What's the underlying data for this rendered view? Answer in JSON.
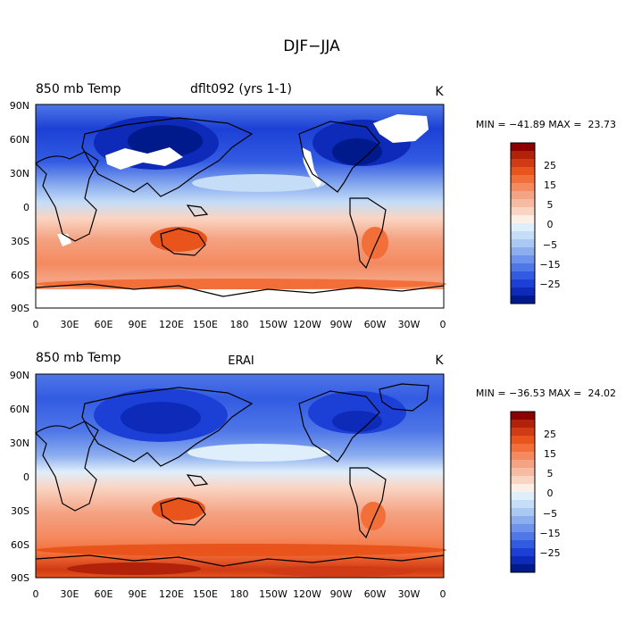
{
  "figure": {
    "title": "DJF−JJA"
  },
  "panels": [
    {
      "left_title": "850 mb Temp",
      "center_title": "dflt092 (yrs 1-1)",
      "units": "K",
      "stats_text": "MIN = −41.89 MAX =  23.73"
    },
    {
      "left_title": "850 mb Temp",
      "center_title": "ERAI",
      "units": "K",
      "stats_text": "MIN = −36.53 MAX =  24.02"
    }
  ],
  "axes": {
    "lat_ticks": [
      "90N",
      "60N",
      "30N",
      "0",
      "30S",
      "60S",
      "90S"
    ],
    "lon_ticks": [
      "0",
      "30E",
      "60E",
      "90E",
      "120E",
      "150E",
      "180",
      "150W",
      "120W",
      "90W",
      "60W",
      "30W",
      "0"
    ]
  },
  "colorbar": {
    "labels": [
      "25",
      "15",
      "5",
      "0",
      "−5",
      "−15",
      "−25"
    ],
    "colors": [
      "#8b0000",
      "#b2220a",
      "#d03a14",
      "#e8541c",
      "#f36f3a",
      "#f5895f",
      "#f4a383",
      "#f6bca3",
      "#fad4c2",
      "#fdeee6",
      "#dfeefb",
      "#c5ddf7",
      "#a9c8f3",
      "#8caeef",
      "#6d93ec",
      "#4f77e8",
      "#335be2",
      "#1c40d5",
      "#0e2ab8",
      "#001a8c"
    ]
  },
  "chart_data": [
    {
      "type": "heatmap",
      "title": "850 mb Temp  dflt092 (yrs 1-1)",
      "units": "K",
      "min": -41.89,
      "max": 23.73,
      "contour_levels": [
        -30,
        -25,
        -20,
        -15,
        -10,
        -5,
        -2,
        0,
        2,
        5,
        10,
        15,
        20,
        25,
        30
      ],
      "xlabel": "",
      "ylabel": ""
    },
    {
      "type": "heatmap",
      "title": "850 mb Temp  ERAI",
      "units": "K",
      "min": -36.53,
      "max": 24.02,
      "contour_levels": [
        -30,
        -25,
        -20,
        -15,
        -10,
        -5,
        -2,
        0,
        2,
        5,
        10,
        15,
        20,
        25,
        30
      ],
      "xlabel": "",
      "ylabel": ""
    }
  ]
}
